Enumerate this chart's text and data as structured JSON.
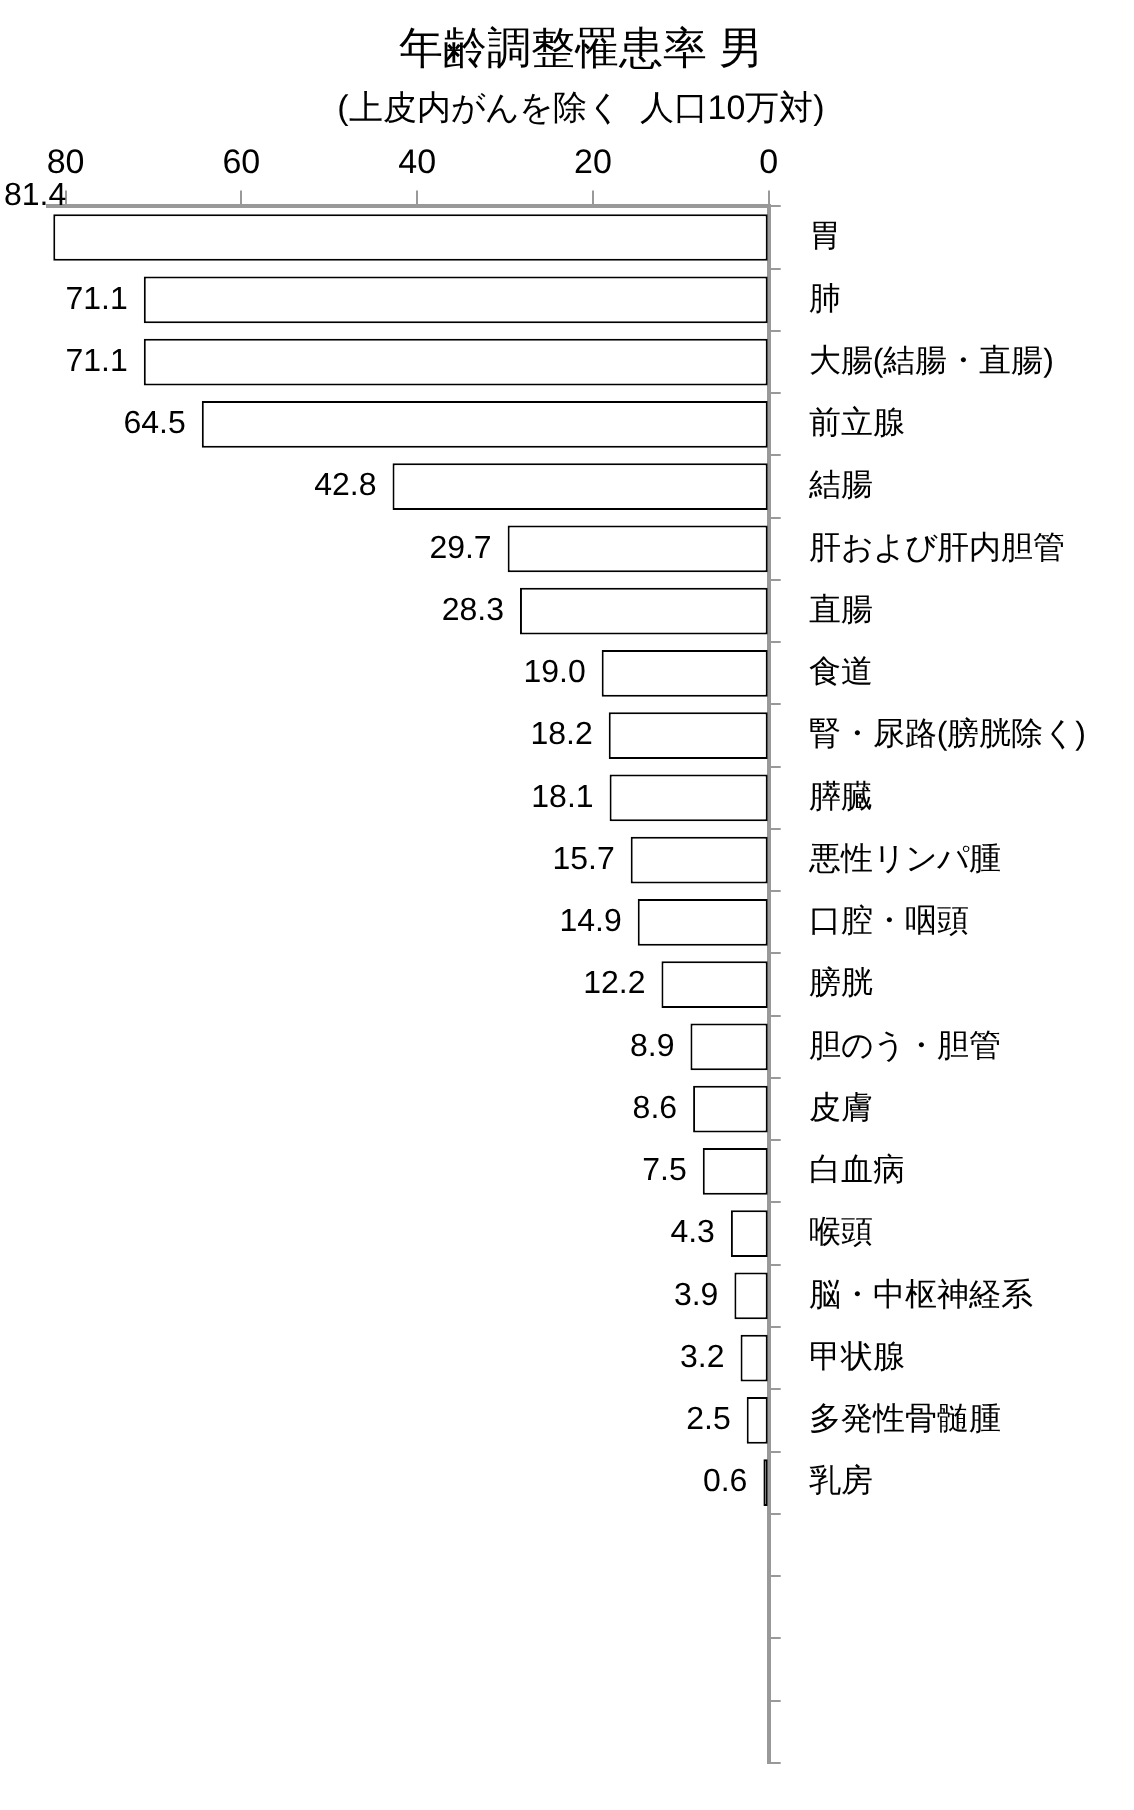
{
  "chart_data": {
    "type": "bar",
    "orientation": "horizontal",
    "title": "年齢調整罹患率 男",
    "subtitle": "(上皮内がんを除く  人口10万対)",
    "categories": [
      "胃",
      "肺",
      "大腸(結腸・直腸)",
      "前立腺",
      "結腸",
      "肝および肝内胆管",
      "直腸",
      "食道",
      "腎・尿路(膀胱除く)",
      "膵臓",
      "悪性リンパ腫",
      "口腔・咽頭",
      "膀胱",
      "胆のう・胆管",
      "皮膚",
      "白血病",
      "喉頭",
      "脳・中枢神経系",
      "甲状腺",
      "多発性骨髄腫",
      "乳房",
      null,
      null,
      null,
      null
    ],
    "values": [
      81.4,
      71.1,
      71.1,
      64.5,
      42.8,
      29.7,
      28.3,
      19.0,
      18.2,
      18.1,
      15.7,
      14.9,
      12.2,
      8.9,
      8.6,
      7.5,
      4.3,
      3.9,
      3.2,
      2.5,
      0.6,
      null,
      null,
      null,
      null
    ],
    "value_labels": [
      "81.4",
      "71.1",
      "71.1",
      "64.5",
      "42.8",
      "29.7",
      "28.3",
      "19.0",
      "18.2",
      "18.1",
      "15.7",
      "14.9",
      "12.2",
      "8.9",
      "8.6",
      "7.5",
      "4.3",
      "3.9",
      "3.2",
      "2.5",
      "0.6",
      null,
      null,
      null,
      null
    ],
    "color": "#ffffff",
    "xlim": [
      82,
      0
    ],
    "xticks": [
      80,
      60,
      40,
      20,
      0
    ],
    "grid": false,
    "legend": false
  }
}
